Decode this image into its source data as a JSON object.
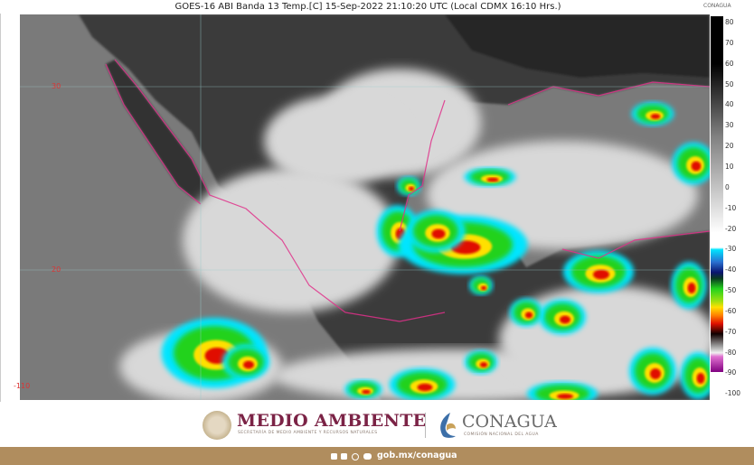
{
  "header": {
    "title": "GOES-16 ABI Banda 13 Temp.[C] 15-Sep-2022 21:10:20 UTC (Local CDMX  16:10 Hrs.)",
    "corner_logo": "CONAGUA"
  },
  "map": {
    "latitude_labels": [
      "30",
      "20"
    ],
    "longitude_labels": [
      "-110"
    ]
  },
  "colorbar": {
    "unit": "Temp. [C]",
    "ticks": [
      "80",
      "70",
      "60",
      "50",
      "40",
      "30",
      "20",
      "10",
      "0",
      "-10",
      "-20",
      "-30",
      "-40",
      "-50",
      "-60",
      "-70",
      "-80",
      "-90",
      "-100"
    ],
    "range": [
      80,
      -100
    ],
    "colors": {
      "warm": "#000000",
      "mid": "#ffffff",
      "cyan": "#00e5ff",
      "blue": "#0a1470",
      "green": "#22d21e",
      "yellow": "#ffe000",
      "red": "#e01000",
      "pink": "#e070d0",
      "purple": "#800080"
    }
  },
  "footer": {
    "brand1": "MEDIO AMBIENTE",
    "brand1_sub": "SECRETARÍA DE MEDIO AMBIENTE Y RECURSOS NATURALES",
    "brand2": "CONAGUA",
    "brand2_sub": "COMISIÓN NACIONAL DEL AGUA",
    "social_icons": [
      "facebook-icon",
      "twitter-icon",
      "instagram-icon",
      "youtube-icon"
    ],
    "url": "gob.mx/conagua",
    "band_color": "#b08d5e",
    "brand1_color": "#7b2346"
  }
}
